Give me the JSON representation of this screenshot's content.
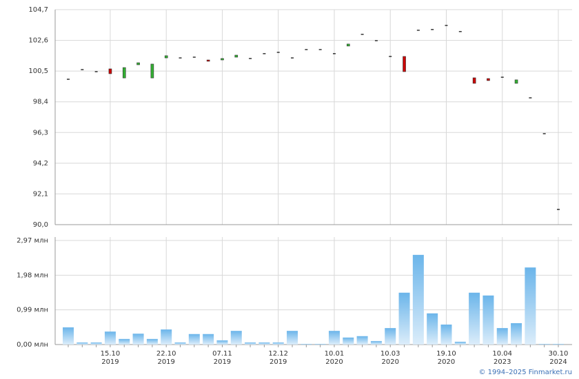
{
  "chart_data": {
    "type": "candlestick",
    "categories": [
      null,
      null,
      null,
      "15.10\n2019",
      null,
      null,
      null,
      "22.10\n2019",
      null,
      null,
      null,
      "07.11\n2019",
      null,
      null,
      null,
      "12.12\n2019",
      null,
      null,
      null,
      "10.01\n2020",
      null,
      null,
      null,
      "10.03\n2020",
      null,
      null,
      null,
      "19.10\n2020",
      null,
      null,
      null,
      "10.04\n2023",
      null,
      null,
      null,
      "30.10\n2024"
    ],
    "open": [
      99.94,
      100.6,
      100.46,
      100.65,
      100.03,
      100.93,
      100.03,
      101.4,
      101.4,
      101.45,
      101.26,
      101.26,
      101.45,
      101.36,
      101.69,
      101.78,
      101.4,
      101.97,
      101.97,
      101.69,
      102.21,
      103.01,
      102.58,
      101.5,
      101.5,
      103.29,
      103.34,
      103.62,
      103.2,
      100.04,
      99.99,
      100.08,
      99.66,
      98.67,
      96.22,
      91.04
    ],
    "close": [
      99.94,
      100.6,
      100.46,
      100.32,
      100.74,
      101.07,
      100.98,
      101.55,
      101.4,
      101.45,
      101.17,
      101.36,
      101.59,
      101.36,
      101.69,
      101.78,
      101.4,
      101.97,
      101.97,
      101.69,
      102.35,
      103.01,
      102.58,
      101.5,
      100.46,
      103.29,
      103.34,
      103.62,
      103.2,
      99.66,
      99.85,
      100.08,
      99.9,
      98.67,
      96.22,
      91.04
    ],
    "up_color": "#33b033",
    "down_color": "#cc0000",
    "flat_color": "#000000",
    "ylim": [
      90.0,
      104.7
    ],
    "yticks": [
      {
        "value": 90.0,
        "label": "90,0"
      },
      {
        "value": 92.1,
        "label": "92,1"
      },
      {
        "value": 94.2,
        "label": "94,2"
      },
      {
        "value": 96.3,
        "label": "96,3"
      },
      {
        "value": 98.4,
        "label": "98,4"
      },
      {
        "value": 100.5,
        "label": "100,5"
      },
      {
        "value": 102.6,
        "label": "102,6"
      },
      {
        "value": 104.7,
        "label": "104,7"
      }
    ],
    "grid": true,
    "volume": {
      "values": [
        0.49,
        0.06,
        0.06,
        0.37,
        0.16,
        0.31,
        0.16,
        0.43,
        0.06,
        0.3,
        0.3,
        0.12,
        0.39,
        0.06,
        0.06,
        0.06,
        0.39,
        0.02,
        0.02,
        0.39,
        0.2,
        0.24,
        0.1,
        0.47,
        1.48,
        2.56,
        0.89,
        0.57,
        0.08,
        1.48,
        1.4,
        0.47,
        0.61,
        2.2,
        0.02,
        0.02
      ],
      "color": "#6bb5ea",
      "ylim": [
        0,
        2.97
      ],
      "yticks": [
        {
          "value": 0,
          "label": "0,00 млн"
        },
        {
          "value": 0.99,
          "label": "0,99 млн"
        },
        {
          "value": 1.98,
          "label": "1,98 млн"
        },
        {
          "value": 2.97,
          "label": "2,97 млн"
        }
      ]
    },
    "copyright": "© 1994–2025 Finmarket.ru"
  }
}
